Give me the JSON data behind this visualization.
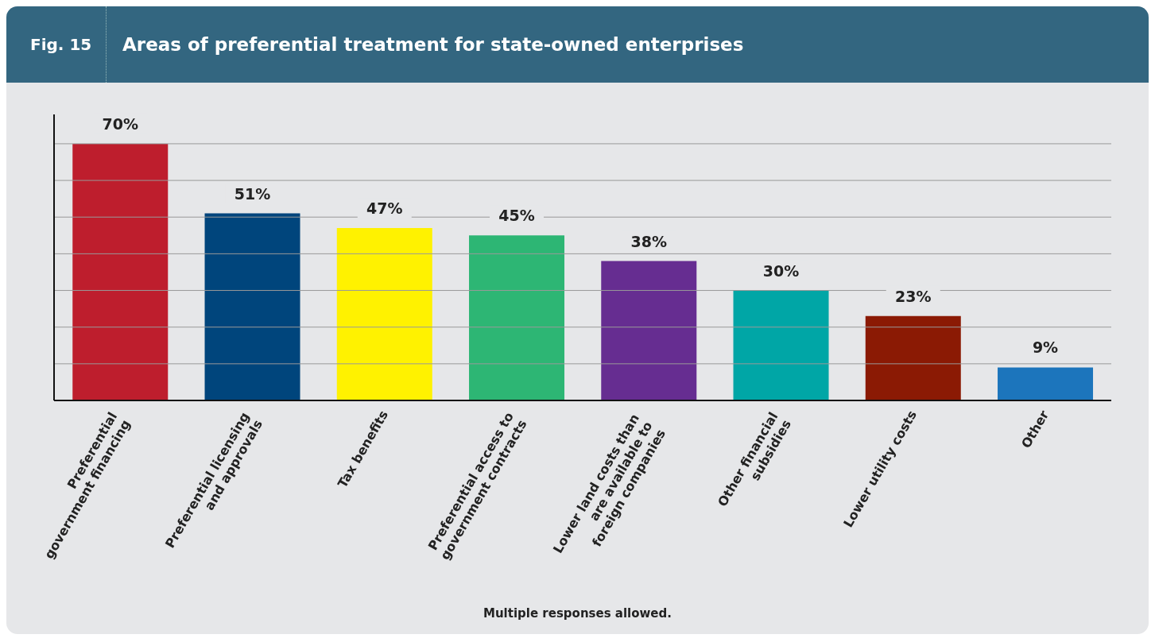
{
  "chart_data": {
    "type": "bar",
    "title": "Areas of preferential treatment for state-owned enterprises",
    "categories": [
      "Preferential government financing",
      "Preferential licensing and approvals",
      "Tax benefits",
      "Preferential access to government contracts",
      "Lower land costs than are available to foreign companies",
      "Other financial subsidies",
      "Lower utility costs",
      "Other"
    ],
    "values": [
      70,
      51,
      47,
      45,
      38,
      30,
      23,
      9
    ],
    "colors": [
      "#be1e2d",
      "#00457c",
      "#fff200",
      "#2db674",
      "#662d91",
      "#00a6a6",
      "#8b1a04",
      "#1c75bc"
    ],
    "value_labels": [
      "70%",
      "51%",
      "47%",
      "45%",
      "38%",
      "30%",
      "23%",
      "9%"
    ],
    "ylim": [
      0,
      78
    ],
    "yticks": [
      {
        "value": 0,
        "label": null
      },
      {
        "value": 10,
        "label": null
      },
      {
        "value": 20,
        "label": null
      },
      {
        "value": 30,
        "label": null
      },
      {
        "value": 40,
        "label": null
      },
      {
        "value": 50,
        "label": null
      },
      {
        "value": 60,
        "label": null
      },
      {
        "value": 70,
        "label": null
      }
    ],
    "grid": "y",
    "tick_labels": "x",
    "annotations": [
      "Fig. 15",
      "Multiple responses allowed."
    ]
  }
}
